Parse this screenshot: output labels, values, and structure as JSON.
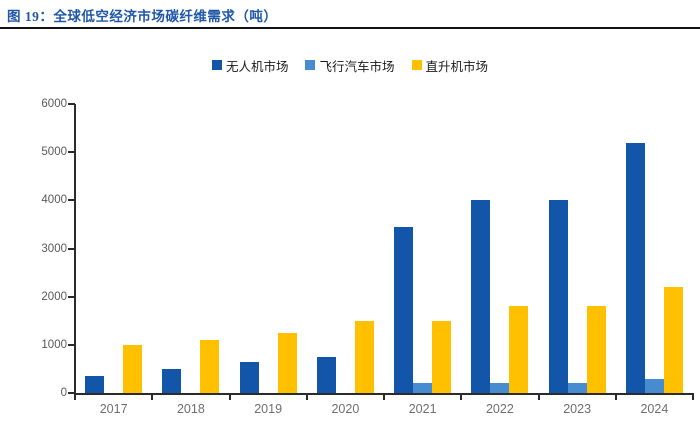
{
  "header": {
    "title": "图 19：全球低空经济市场碳纤维需求（吨）",
    "accent_color": "#2057A7",
    "divider_color": "#111111"
  },
  "chart_data": {
    "type": "bar",
    "title": "全球低空经济市场碳纤维需求（吨）",
    "categories": [
      "2017",
      "2018",
      "2019",
      "2020",
      "2021",
      "2022",
      "2023",
      "2024"
    ],
    "series": [
      {
        "name": "无人机市场",
        "color": "#1355A9",
        "values": [
          350,
          500,
          650,
          750,
          3450,
          4000,
          4000,
          5200
        ]
      },
      {
        "name": "飞行汽车市场",
        "color": "#478BD1",
        "values": [
          0,
          0,
          0,
          0,
          200,
          200,
          200,
          300
        ]
      },
      {
        "name": "直升机市场",
        "color": "#FFC000",
        "values": [
          1000,
          1100,
          1250,
          1500,
          1500,
          1800,
          1800,
          2200
        ]
      }
    ],
    "xlabel": "",
    "ylabel": "",
    "ylim": [
      0,
      6000
    ],
    "yticks": [
      0,
      1000,
      2000,
      3000,
      4000,
      5000,
      6000
    ],
    "legend_position": "top",
    "grid": false,
    "axis_color": "#2b2b2b",
    "tick_label_color": "#595959"
  }
}
